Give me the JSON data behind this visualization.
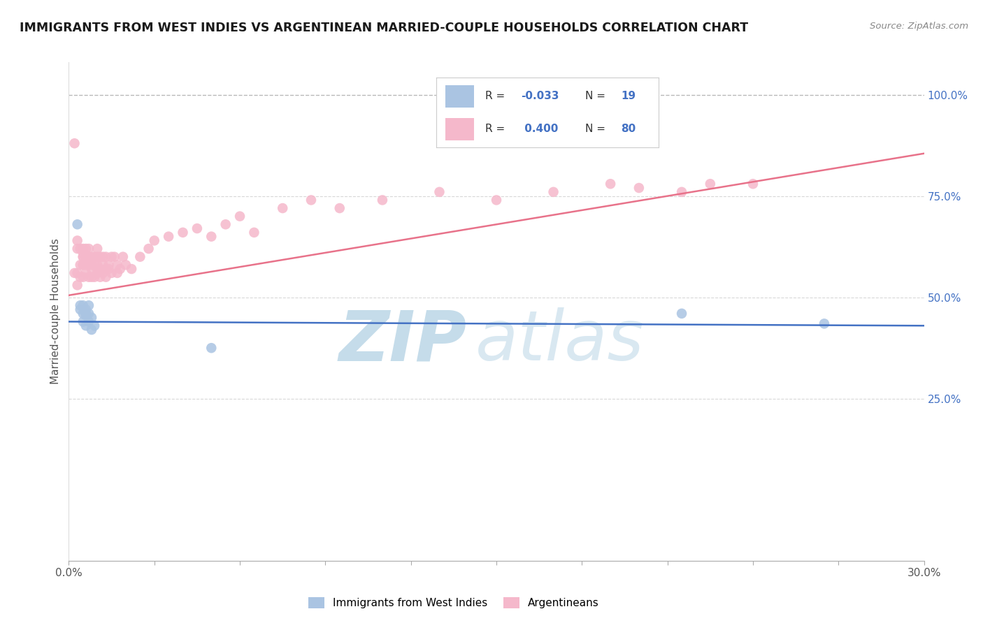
{
  "title": "IMMIGRANTS FROM WEST INDIES VS ARGENTINEAN MARRIED-COUPLE HOUSEHOLDS CORRELATION CHART",
  "source": "Source: ZipAtlas.com",
  "ylabel": "Married-couple Households",
  "xlim": [
    0.0,
    0.3
  ],
  "ylim": [
    -0.15,
    1.08
  ],
  "xticks": [
    0.0,
    0.03,
    0.06,
    0.09,
    0.12,
    0.15,
    0.18,
    0.21,
    0.24,
    0.27,
    0.3
  ],
  "xtick_labels": [
    "0.0%",
    "",
    "",
    "",
    "",
    "",
    "",
    "",
    "",
    "",
    "30.0%"
  ],
  "right_ytick_positions": [
    0.25,
    0.5,
    0.75,
    1.0
  ],
  "right_ytick_labels": [
    "25.0%",
    "50.0%",
    "75.0%",
    "100.0%"
  ],
  "blue_R": -0.033,
  "blue_N": 19,
  "pink_R": 0.4,
  "pink_N": 80,
  "blue_color": "#aac4e2",
  "pink_color": "#f5b8cb",
  "blue_line_color": "#4472c4",
  "pink_line_color": "#e8728a",
  "dashed_line_color": "#b8b8b8",
  "legend_blue_label": "Immigrants from West Indies",
  "legend_pink_label": "Argentineans",
  "blue_scatter_x": [
    0.003,
    0.004,
    0.004,
    0.005,
    0.005,
    0.005,
    0.006,
    0.006,
    0.006,
    0.006,
    0.007,
    0.007,
    0.007,
    0.008,
    0.008,
    0.009,
    0.05,
    0.215,
    0.265
  ],
  "blue_scatter_y": [
    0.68,
    0.47,
    0.48,
    0.46,
    0.44,
    0.48,
    0.455,
    0.46,
    0.43,
    0.47,
    0.46,
    0.44,
    0.48,
    0.45,
    0.42,
    0.43,
    0.375,
    0.46,
    0.435
  ],
  "pink_scatter_x": [
    0.002,
    0.002,
    0.003,
    0.003,
    0.003,
    0.003,
    0.004,
    0.004,
    0.004,
    0.005,
    0.005,
    0.005,
    0.005,
    0.005,
    0.005,
    0.005,
    0.006,
    0.006,
    0.006,
    0.006,
    0.006,
    0.007,
    0.007,
    0.007,
    0.007,
    0.007,
    0.008,
    0.008,
    0.008,
    0.008,
    0.009,
    0.009,
    0.009,
    0.01,
    0.01,
    0.01,
    0.01,
    0.01,
    0.011,
    0.011,
    0.011,
    0.012,
    0.012,
    0.012,
    0.013,
    0.013,
    0.013,
    0.014,
    0.014,
    0.015,
    0.015,
    0.016,
    0.017,
    0.017,
    0.018,
    0.019,
    0.02,
    0.022,
    0.025,
    0.028,
    0.03,
    0.035,
    0.04,
    0.045,
    0.05,
    0.055,
    0.06,
    0.065,
    0.075,
    0.085,
    0.095,
    0.11,
    0.13,
    0.15,
    0.17,
    0.19,
    0.2,
    0.215,
    0.225,
    0.24
  ],
  "pink_scatter_y": [
    0.88,
    0.56,
    0.62,
    0.64,
    0.56,
    0.53,
    0.62,
    0.58,
    0.55,
    0.6,
    0.58,
    0.62,
    0.6,
    0.55,
    0.58,
    0.61,
    0.6,
    0.62,
    0.58,
    0.56,
    0.6,
    0.58,
    0.55,
    0.6,
    0.58,
    0.62,
    0.57,
    0.6,
    0.58,
    0.55,
    0.55,
    0.58,
    0.6,
    0.57,
    0.6,
    0.56,
    0.58,
    0.62,
    0.57,
    0.6,
    0.55,
    0.58,
    0.56,
    0.6,
    0.57,
    0.6,
    0.55,
    0.57,
    0.58,
    0.6,
    0.56,
    0.6,
    0.58,
    0.56,
    0.57,
    0.6,
    0.58,
    0.57,
    0.6,
    0.62,
    0.64,
    0.65,
    0.66,
    0.67,
    0.65,
    0.68,
    0.7,
    0.66,
    0.72,
    0.74,
    0.72,
    0.74,
    0.76,
    0.74,
    0.76,
    0.78,
    0.77,
    0.76,
    0.78,
    0.78
  ]
}
